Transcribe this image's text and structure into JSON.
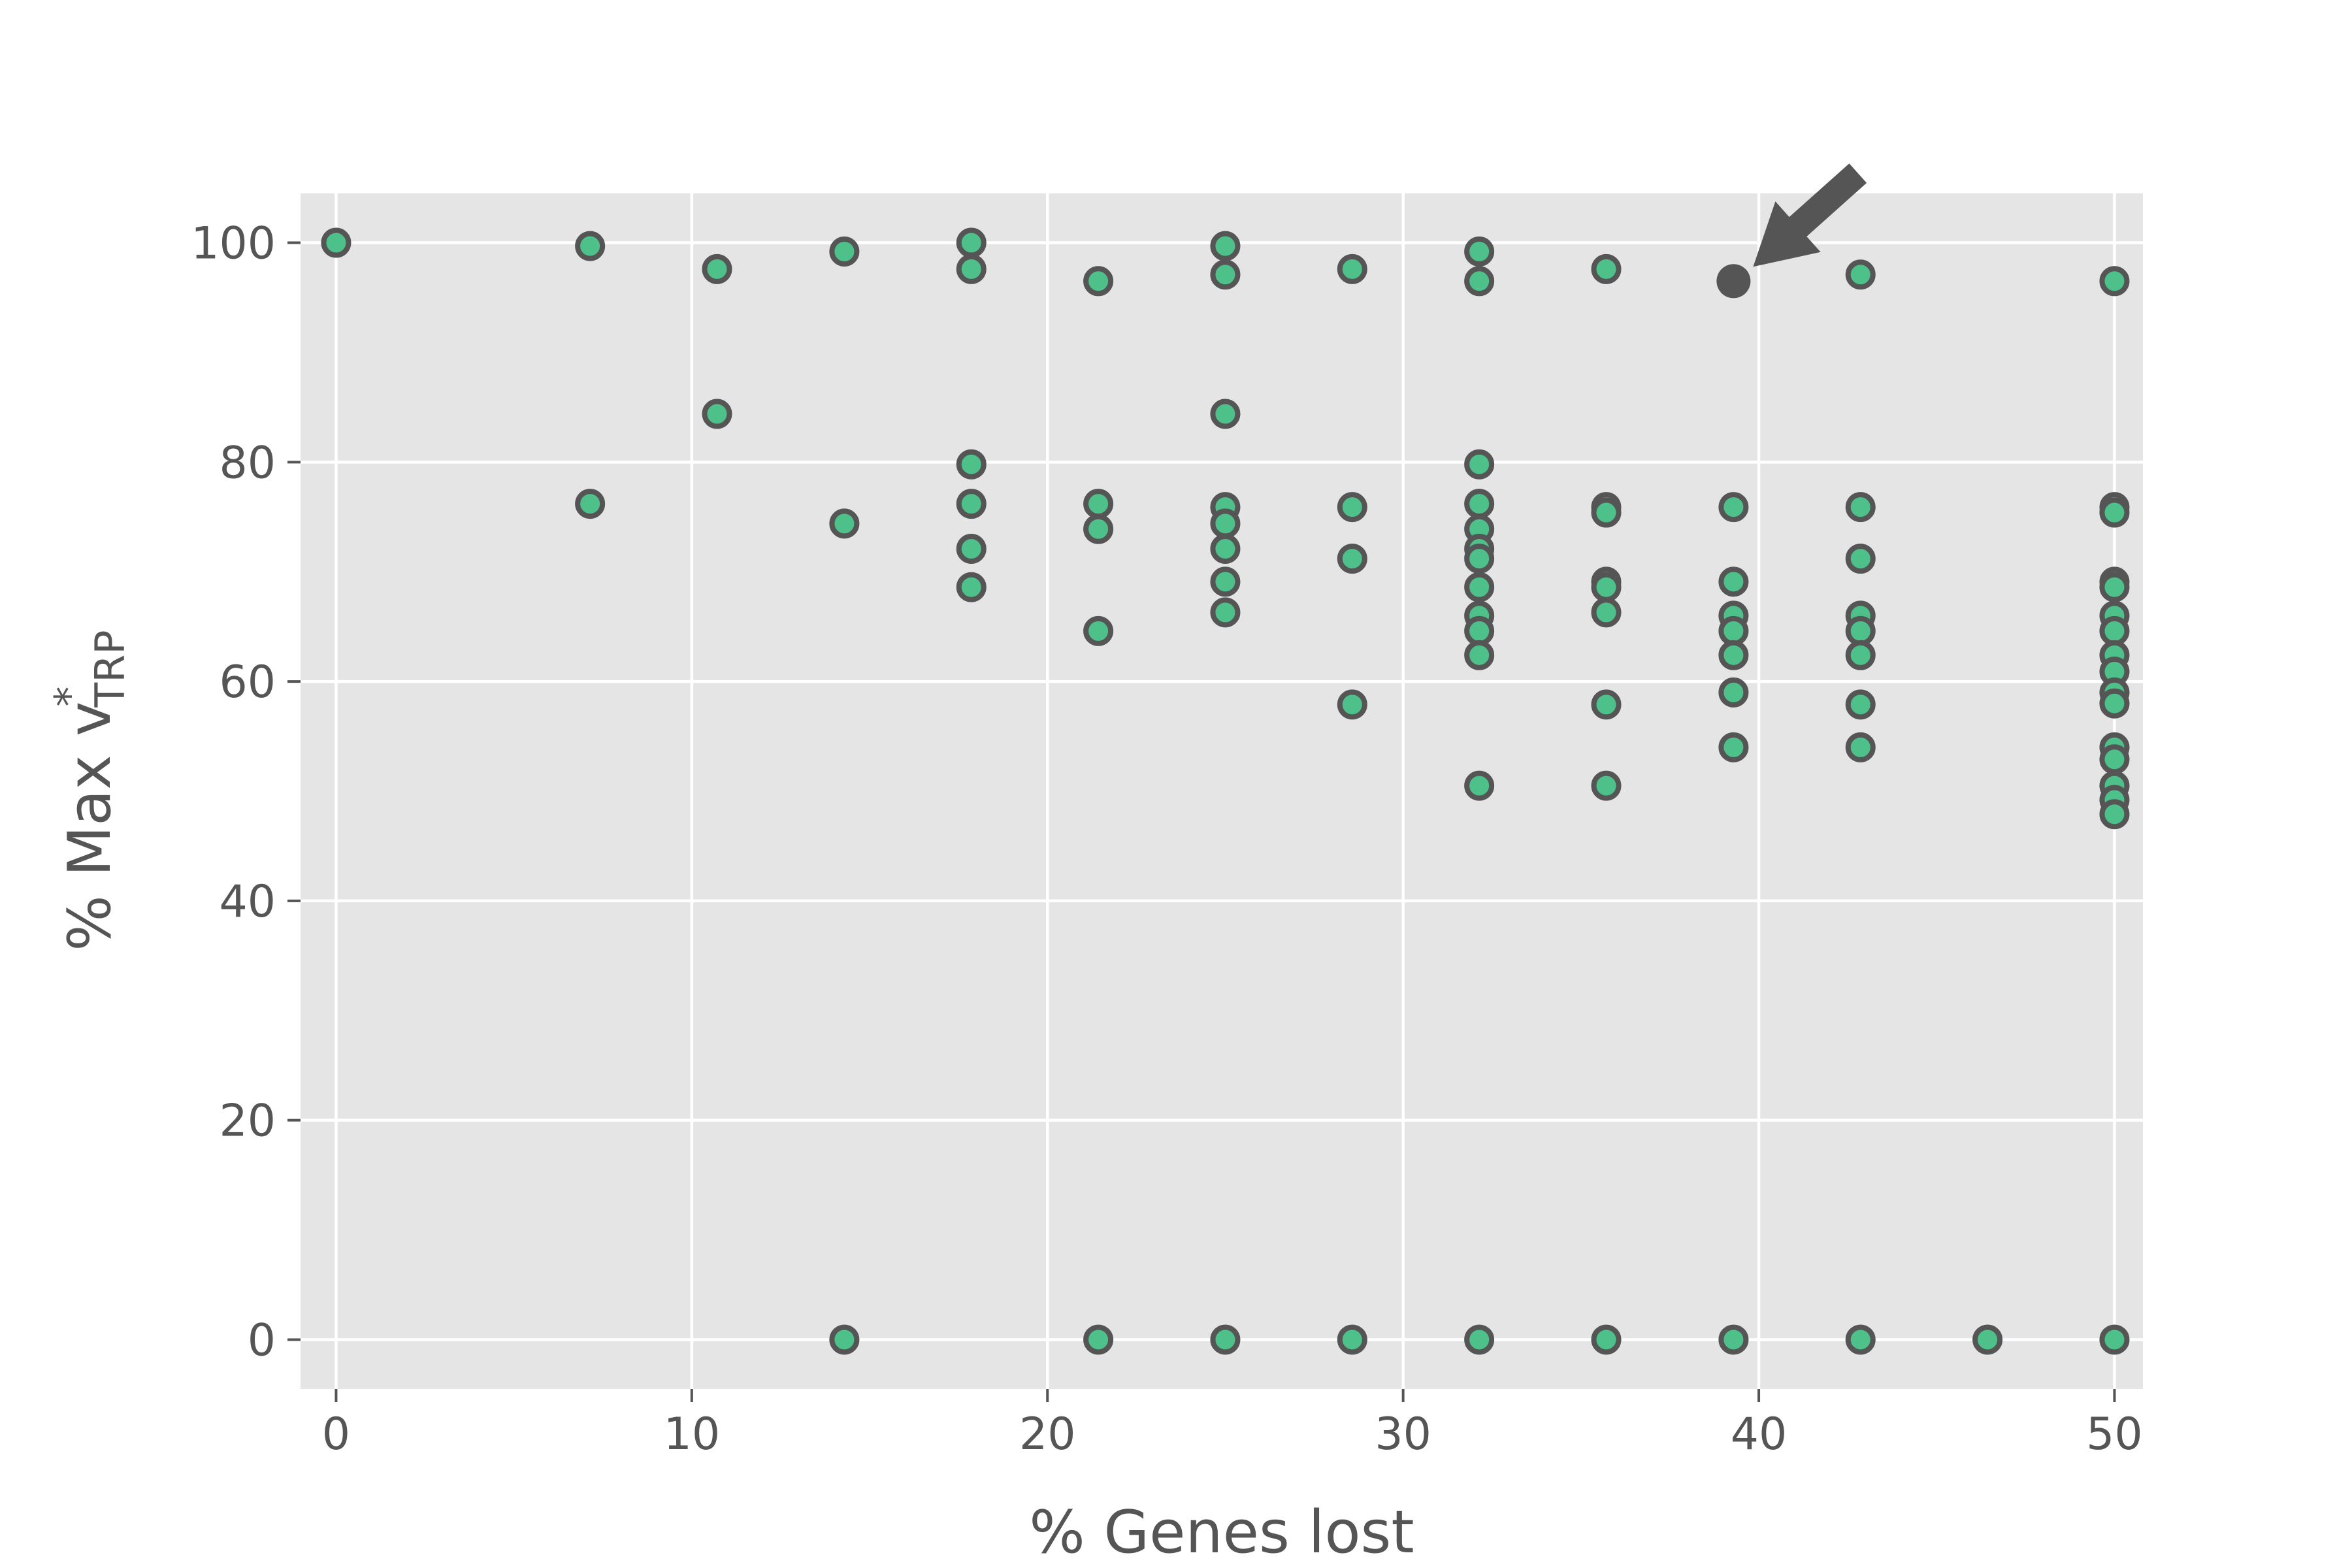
{
  "chart_data": {
    "type": "scatter",
    "title": "",
    "xlabel": "% Genes lost",
    "ylabel_parts": {
      "prefix": "% Max v",
      "sup": "*",
      "sub": "TRP"
    },
    "xlim": [
      -1,
      50.8
    ],
    "ylim": [
      -4.5,
      104.5
    ],
    "xticks": [
      "0",
      "10",
      "20",
      "30",
      "40",
      "50"
    ],
    "yticks": [
      "0",
      "20",
      "40",
      "60",
      "80",
      "100"
    ],
    "grid": true,
    "colors": {
      "background": "#e5e5e5",
      "grid": "#ffffff",
      "marker_fill": "#4ec08a",
      "marker_edge": "#555555",
      "highlight": "#555555",
      "text": "#555555"
    },
    "series": [
      {
        "points": [
          [
            0,
            100
          ],
          [
            7.14,
            99.7
          ],
          [
            7.14,
            76.2
          ],
          [
            10.71,
            97.6
          ],
          [
            10.71,
            84.4
          ],
          [
            14.29,
            99.2
          ],
          [
            14.29,
            74.4
          ],
          [
            14.29,
            0
          ],
          [
            17.86,
            100
          ],
          [
            17.86,
            97.6
          ],
          [
            17.86,
            79.8
          ],
          [
            17.86,
            76.2
          ],
          [
            17.86,
            72.1
          ],
          [
            17.86,
            68.6
          ],
          [
            21.43,
            96.5
          ],
          [
            21.43,
            76.2
          ],
          [
            21.43,
            73.9
          ],
          [
            21.43,
            64.6
          ],
          [
            21.43,
            0
          ],
          [
            25,
            99.7
          ],
          [
            25,
            97.1
          ],
          [
            25,
            84.4
          ],
          [
            25,
            75.9
          ],
          [
            25,
            74.4
          ],
          [
            25,
            72.1
          ],
          [
            25,
            69.1
          ],
          [
            25,
            66.3
          ],
          [
            25,
            0
          ],
          [
            28.57,
            97.6
          ],
          [
            28.57,
            75.9
          ],
          [
            28.57,
            71.2
          ],
          [
            28.57,
            57.9
          ],
          [
            28.57,
            0
          ],
          [
            32.14,
            99.2
          ],
          [
            32.14,
            96.5
          ],
          [
            32.14,
            79.8
          ],
          [
            32.14,
            76.2
          ],
          [
            32.14,
            73.9
          ],
          [
            32.14,
            72.1
          ],
          [
            32.14,
            71.2
          ],
          [
            32.14,
            68.6
          ],
          [
            32.14,
            66.0
          ],
          [
            32.14,
            64.6
          ],
          [
            32.14,
            62.4
          ],
          [
            32.14,
            50.5
          ],
          [
            32.14,
            0
          ],
          [
            35.71,
            97.6
          ],
          [
            35.71,
            75.9
          ],
          [
            35.71,
            75.4
          ],
          [
            35.71,
            69.1
          ],
          [
            35.71,
            68.6
          ],
          [
            35.71,
            66.3
          ],
          [
            35.71,
            57.9
          ],
          [
            35.71,
            50.5
          ],
          [
            35.71,
            0
          ],
          [
            39.29,
            75.9
          ],
          [
            39.29,
            69.1
          ],
          [
            39.29,
            66.0
          ],
          [
            39.29,
            64.6
          ],
          [
            39.29,
            62.4
          ],
          [
            39.29,
            59.0
          ],
          [
            39.29,
            54.0
          ],
          [
            39.29,
            0
          ],
          [
            42.86,
            97.1
          ],
          [
            42.86,
            75.9
          ],
          [
            42.86,
            71.2
          ],
          [
            42.86,
            66.0
          ],
          [
            42.86,
            64.6
          ],
          [
            42.86,
            62.4
          ],
          [
            42.86,
            57.9
          ],
          [
            42.86,
            54.0
          ],
          [
            42.86,
            0
          ],
          [
            46.43,
            0
          ],
          [
            50,
            96.5
          ],
          [
            50,
            75.9
          ],
          [
            50,
            75.4
          ],
          [
            50,
            69.1
          ],
          [
            50,
            68.6
          ],
          [
            50,
            66.0
          ],
          [
            50,
            64.6
          ],
          [
            50,
            62.4
          ],
          [
            50,
            60.9
          ],
          [
            50,
            59.0
          ],
          [
            50,
            58.0
          ],
          [
            50,
            54.0
          ],
          [
            50,
            52.9
          ],
          [
            50,
            50.5
          ],
          [
            50,
            49.2
          ],
          [
            50,
            47.9
          ],
          [
            50,
            0
          ]
        ]
      }
    ],
    "highlight_point": {
      "x": 39.29,
      "y": 96.5
    },
    "annotation": {
      "type": "arrow",
      "points_to": {
        "x": 39.29,
        "y": 96.5
      }
    }
  }
}
